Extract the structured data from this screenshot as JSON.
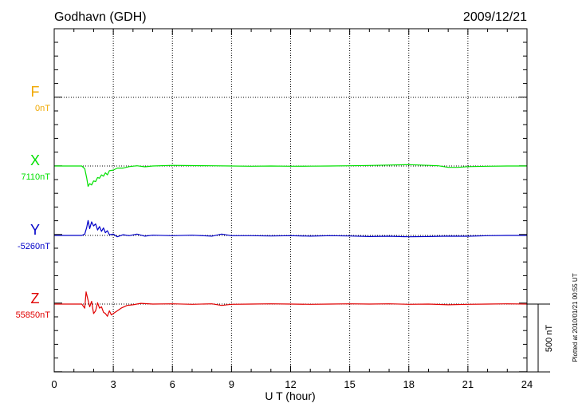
{
  "header": {
    "station": "Godhavn (GDH)",
    "date": "2009/12/21"
  },
  "footer": {
    "plotted": "Plotted at 2010/01/21 00:55 UT"
  },
  "chart_data": {
    "type": "line",
    "title": "Godhavn (GDH)",
    "date": "2009/12/21",
    "xlabel": "U T (hour)",
    "xlim": [
      0,
      24
    ],
    "x_ticks": [
      "0",
      "3",
      "6",
      "9",
      "12",
      "15",
      "18",
      "21",
      "24"
    ],
    "y_unit": "nT",
    "scale_bar": {
      "label": "500 nT",
      "value": 500
    },
    "grid": true,
    "series": [
      {
        "name": "F",
        "baseline_label": "0nT",
        "color": "#f0a800",
        "baseline": 0,
        "hours": [],
        "values": []
      },
      {
        "name": "X",
        "baseline_label": "7110nT",
        "color": "#00e000",
        "baseline": 7110,
        "hours": [
          0,
          1.4,
          1.55,
          1.65,
          1.72,
          1.8,
          1.9,
          2.0,
          2.1,
          2.2,
          2.3,
          2.4,
          2.5,
          2.6,
          2.7,
          2.8,
          3.0,
          3.2,
          3.5,
          3.8,
          4.2,
          4.6,
          5,
          6,
          7,
          8,
          9,
          10,
          11,
          12,
          13,
          14,
          15,
          16,
          17,
          18,
          19,
          19.5,
          20,
          20.5,
          21,
          22,
          23,
          24
        ],
        "values": [
          7110,
          7110,
          7090,
          7020,
          6960,
          6980,
          6970,
          7000,
          6995,
          7025,
          7020,
          7045,
          7035,
          7060,
          7045,
          7075,
          7080,
          7095,
          7095,
          7105,
          7112,
          7104,
          7110,
          7115,
          7113,
          7112,
          7110,
          7108,
          7110,
          7108,
          7109,
          7110,
          7112,
          7114,
          7117,
          7120,
          7115,
          7112,
          7100,
          7100,
          7105,
          7108,
          7110,
          7110
        ]
      },
      {
        "name": "Y",
        "baseline_label": "-5260nT",
        "color": "#0000c8",
        "baseline": -5260,
        "hours": [
          0,
          1.4,
          1.55,
          1.65,
          1.72,
          1.8,
          1.9,
          2.0,
          2.1,
          2.2,
          2.3,
          2.4,
          2.5,
          2.6,
          2.7,
          2.8,
          3.0,
          3.2,
          3.5,
          3.8,
          4.2,
          4.6,
          5,
          6,
          7,
          8,
          8.5,
          9,
          10,
          11,
          12,
          13,
          14,
          15,
          16,
          17,
          18,
          19,
          20,
          21,
          22,
          23,
          24
        ],
        "values": [
          -5260,
          -5260,
          -5250,
          -5200,
          -5150,
          -5210,
          -5160,
          -5190,
          -5175,
          -5220,
          -5195,
          -5230,
          -5205,
          -5240,
          -5225,
          -5255,
          -5250,
          -5270,
          -5255,
          -5262,
          -5250,
          -5265,
          -5258,
          -5262,
          -5258,
          -5265,
          -5250,
          -5262,
          -5262,
          -5264,
          -5262,
          -5265,
          -5262,
          -5264,
          -5268,
          -5266,
          -5270,
          -5268,
          -5265,
          -5266,
          -5262,
          -5260,
          -5260
        ]
      },
      {
        "name": "Z",
        "baseline_label": "55850nT",
        "color": "#e00000",
        "baseline": 55850,
        "hours": [
          0,
          1.4,
          1.55,
          1.62,
          1.7,
          1.8,
          1.9,
          2.0,
          2.1,
          2.2,
          2.3,
          2.4,
          2.5,
          2.6,
          2.7,
          2.8,
          2.9,
          3.0,
          3.2,
          3.4,
          3.7,
          4.0,
          4.4,
          5,
          6,
          7,
          8,
          8.5,
          9,
          10,
          11,
          12,
          13,
          14,
          15,
          16,
          17,
          18,
          19,
          20,
          21,
          22,
          23,
          24
        ],
        "values": [
          55850,
          55850,
          55820,
          55940,
          55890,
          55830,
          55870,
          55780,
          55800,
          55860,
          55820,
          55830,
          55790,
          55780,
          55760,
          55800,
          55770,
          55780,
          55800,
          55820,
          55840,
          55845,
          55855,
          55850,
          55852,
          55848,
          55852,
          55840,
          55848,
          55850,
          55852,
          55850,
          55848,
          55850,
          55852,
          55850,
          55852,
          55848,
          55850,
          55845,
          55848,
          55850,
          55852,
          55850
        ]
      }
    ]
  }
}
